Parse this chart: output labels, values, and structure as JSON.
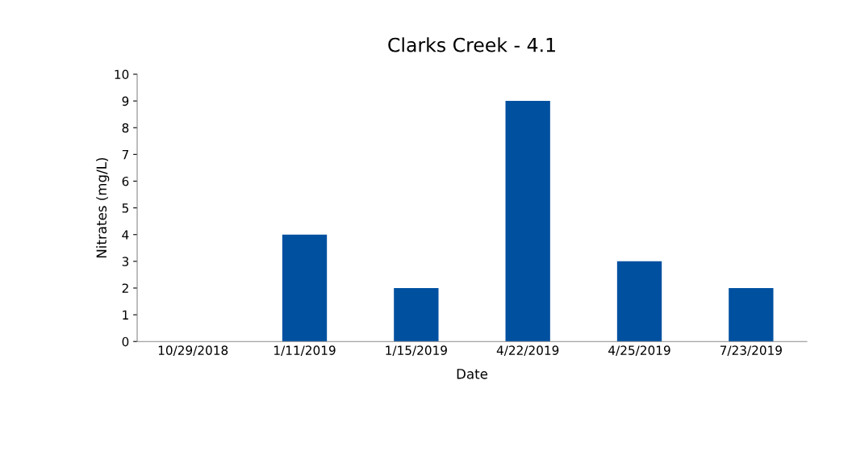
{
  "chart_data": {
    "type": "bar",
    "title": "Clarks Creek - 4.1",
    "xlabel": "Date",
    "ylabel": "Nitrates (mg/L)",
    "categories": [
      "10/29/2018",
      "1/11/2019",
      "1/15/2019",
      "4/22/2019",
      "4/25/2019",
      "7/23/2019"
    ],
    "values": [
      0,
      4,
      2,
      9,
      3,
      2
    ],
    "color": "#0050a0",
    "ylim": [
      0,
      10
    ],
    "yticks": [
      0,
      1,
      2,
      3,
      4,
      5,
      6,
      7,
      8,
      9,
      10
    ],
    "grid": false
  }
}
